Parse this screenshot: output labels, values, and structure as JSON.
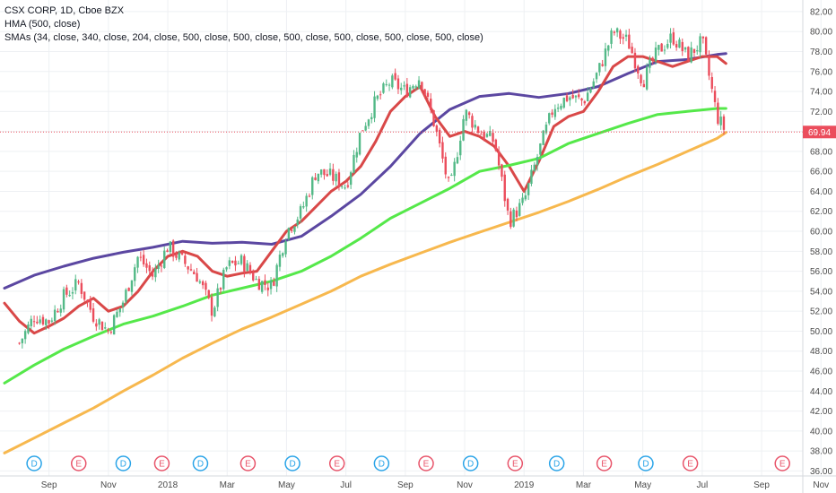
{
  "legend": {
    "symbol": "CSX CORP, 1D, Cboe BZX",
    "hma": "HMA (500, close)",
    "smas": "SMAs (34, close, 340, close, 204, close, 500, close, 500, close, 500, close, 500, close, 500, close, 500, close)"
  },
  "colors": {
    "background": "#ffffff",
    "grid": "#eef0f3",
    "up_candle": "#53b987",
    "down_candle": "#eb4d5c",
    "hma": "#5b47a1",
    "sma_short": "#d94848",
    "sma_mid": "#55e84a",
    "sma_long": "#f7b84e",
    "last_price_bg": "#eb4d5c",
    "event_D": "#2aa4e8",
    "event_E": "#e8546a"
  },
  "chart_data": {
    "type": "line",
    "title": "CSX CORP, 1D, Cboe BZX",
    "xlabel": "",
    "ylabel": "",
    "ylim": [
      35.5,
      82.8
    ],
    "y_ticks": [
      "36.00",
      "38.00",
      "40.00",
      "42.00",
      "44.00",
      "46.00",
      "48.00",
      "50.00",
      "52.00",
      "54.00",
      "56.00",
      "58.00",
      "60.00",
      "62.00",
      "64.00",
      "66.00",
      "68.00",
      "70.00",
      "72.00",
      "74.00",
      "76.00",
      "78.00",
      "80.00",
      "82.00"
    ],
    "x_ticks": [
      {
        "label": "Sep",
        "t": 1.5
      },
      {
        "label": "Nov",
        "t": 3.5
      },
      {
        "label": "2018",
        "t": 5.5
      },
      {
        "label": "Mar",
        "t": 7.5
      },
      {
        "label": "May",
        "t": 9.5
      },
      {
        "label": "Jul",
        "t": 11.5
      },
      {
        "label": "Sep",
        "t": 13.5
      },
      {
        "label": "Nov",
        "t": 15.5
      },
      {
        "label": "2019",
        "t": 17.5
      },
      {
        "label": "Mar",
        "t": 19.5
      },
      {
        "label": "May",
        "t": 21.5
      },
      {
        "label": "Jul",
        "t": 23.5
      },
      {
        "label": "Sep",
        "t": 25.5
      },
      {
        "label": "Nov",
        "t": 27.5
      }
    ],
    "last_price": "69.94",
    "last_price_value": 69.94,
    "price": {
      "t": [
        0.5,
        1.0,
        1.5,
        2.0,
        2.5,
        3.0,
        3.5,
        4.0,
        4.5,
        5.0,
        5.5,
        6.0,
        6.5,
        7.0,
        7.5,
        8.0,
        8.5,
        9.0,
        9.5,
        10.0,
        10.5,
        11.0,
        11.5,
        12.0,
        12.5,
        13.0,
        13.5,
        14.0,
        14.5,
        15.0,
        15.5,
        16.0,
        16.5,
        17.0,
        17.5,
        18.0,
        18.5,
        19.0,
        19.5,
        20.0,
        20.5,
        21.0,
        21.5,
        22.0,
        22.5,
        23.0,
        23.5,
        24.0,
        24.3
      ],
      "close": [
        48.8,
        51.5,
        51.0,
        53.5,
        54.8,
        51.5,
        50.0,
        53.0,
        57.5,
        55.5,
        58.5,
        57.0,
        55.5,
        52.0,
        56.5,
        57.0,
        55.0,
        54.5,
        60.0,
        62.0,
        66.0,
        65.5,
        64.5,
        70.0,
        73.0,
        75.0,
        74.0,
        75.5,
        70.5,
        64.0,
        72.0,
        70.0,
        69.0,
        61.0,
        63.0,
        68.0,
        72.5,
        73.5,
        73.0,
        76.0,
        80.0,
        79.0,
        75.0,
        78.0,
        79.5,
        77.5,
        79.0,
        71.5,
        69.94
      ]
    },
    "series": [
      {
        "color": "#5b47a1",
        "t": [
          0,
          1,
          2,
          3,
          4,
          5,
          6,
          7,
          8,
          9,
          10,
          11,
          12,
          13,
          14,
          15,
          16,
          17,
          18,
          19,
          20,
          21,
          22,
          23,
          24,
          24.3
        ],
        "values": [
          54.3,
          55.6,
          56.5,
          57.3,
          57.9,
          58.4,
          59.0,
          58.8,
          58.9,
          58.7,
          59.5,
          61.5,
          63.7,
          66.5,
          69.8,
          72.2,
          73.5,
          73.8,
          73.4,
          73.8,
          74.5,
          75.8,
          77.0,
          77.2,
          77.7,
          77.8
        ]
      },
      {
        "color": "#d94848",
        "t": [
          0,
          0.5,
          1,
          1.5,
          2,
          2.5,
          3,
          3.5,
          4,
          4.5,
          5,
          5.5,
          6,
          6.5,
          7,
          7.5,
          8,
          8.5,
          9,
          9.5,
          10,
          10.5,
          11,
          11.5,
          12,
          12.5,
          13,
          13.5,
          14,
          14.5,
          15,
          15.5,
          16,
          16.5,
          17,
          17.5,
          18,
          18.5,
          19,
          19.5,
          20,
          20.5,
          21,
          21.5,
          22,
          22.5,
          23,
          23.5,
          24,
          24.3
        ],
        "values": [
          52.8,
          51.0,
          49.8,
          50.5,
          51.3,
          52.5,
          53.3,
          52.0,
          52.5,
          54.0,
          56.0,
          57.5,
          58.0,
          57.5,
          56.0,
          55.5,
          55.8,
          56.0,
          58.0,
          60.0,
          61.0,
          62.5,
          64.0,
          65.0,
          66.5,
          69.0,
          72.0,
          73.5,
          74.5,
          71.5,
          69.5,
          70.0,
          69.5,
          68.5,
          66.5,
          64.0,
          67.0,
          70.5,
          71.5,
          72.0,
          74.0,
          76.5,
          77.5,
          77.5,
          77.0,
          76.5,
          77.0,
          77.5,
          77.5,
          76.8
        ]
      },
      {
        "color": "#55e84a",
        "t": [
          0,
          1,
          2,
          3,
          4,
          5,
          6,
          7,
          8,
          9,
          10,
          11,
          12,
          13,
          14,
          15,
          16,
          17,
          18,
          19,
          20,
          21,
          22,
          23,
          24,
          24.3
        ],
        "values": [
          44.8,
          46.6,
          48.2,
          49.5,
          50.7,
          51.5,
          52.5,
          53.6,
          54.3,
          55.0,
          56.0,
          57.5,
          59.3,
          61.3,
          62.8,
          64.3,
          66.0,
          66.6,
          67.3,
          68.8,
          69.8,
          70.8,
          71.7,
          72.0,
          72.3,
          72.3
        ]
      },
      {
        "color": "#f7b84e",
        "t": [
          0,
          1,
          2,
          3,
          4,
          5,
          6,
          7,
          8,
          9,
          10,
          11,
          12,
          13,
          14,
          15,
          16,
          17,
          18,
          19,
          20,
          21,
          22,
          23,
          24,
          24.3
        ],
        "values": [
          37.8,
          39.3,
          40.8,
          42.3,
          44.0,
          45.6,
          47.3,
          48.8,
          50.2,
          51.4,
          52.7,
          54.0,
          55.5,
          56.7,
          57.8,
          58.9,
          59.9,
          60.9,
          61.9,
          63.0,
          64.2,
          65.5,
          66.7,
          68.0,
          69.3,
          69.9
        ]
      }
    ],
    "events": [
      {
        "type": "D",
        "t": 1.0
      },
      {
        "type": "E",
        "t": 2.5
      },
      {
        "type": "D",
        "t": 4.0
      },
      {
        "type": "E",
        "t": 5.3
      },
      {
        "type": "D",
        "t": 6.6
      },
      {
        "type": "E",
        "t": 8.2
      },
      {
        "type": "D",
        "t": 9.7
      },
      {
        "type": "E",
        "t": 11.2
      },
      {
        "type": "D",
        "t": 12.7
      },
      {
        "type": "E",
        "t": 14.2
      },
      {
        "type": "D",
        "t": 15.7
      },
      {
        "type": "E",
        "t": 17.2
      },
      {
        "type": "D",
        "t": 18.6
      },
      {
        "type": "E",
        "t": 20.2
      },
      {
        "type": "D",
        "t": 21.6
      },
      {
        "type": "E",
        "t": 23.1
      },
      {
        "type": "E",
        "t": 26.2
      }
    ]
  }
}
